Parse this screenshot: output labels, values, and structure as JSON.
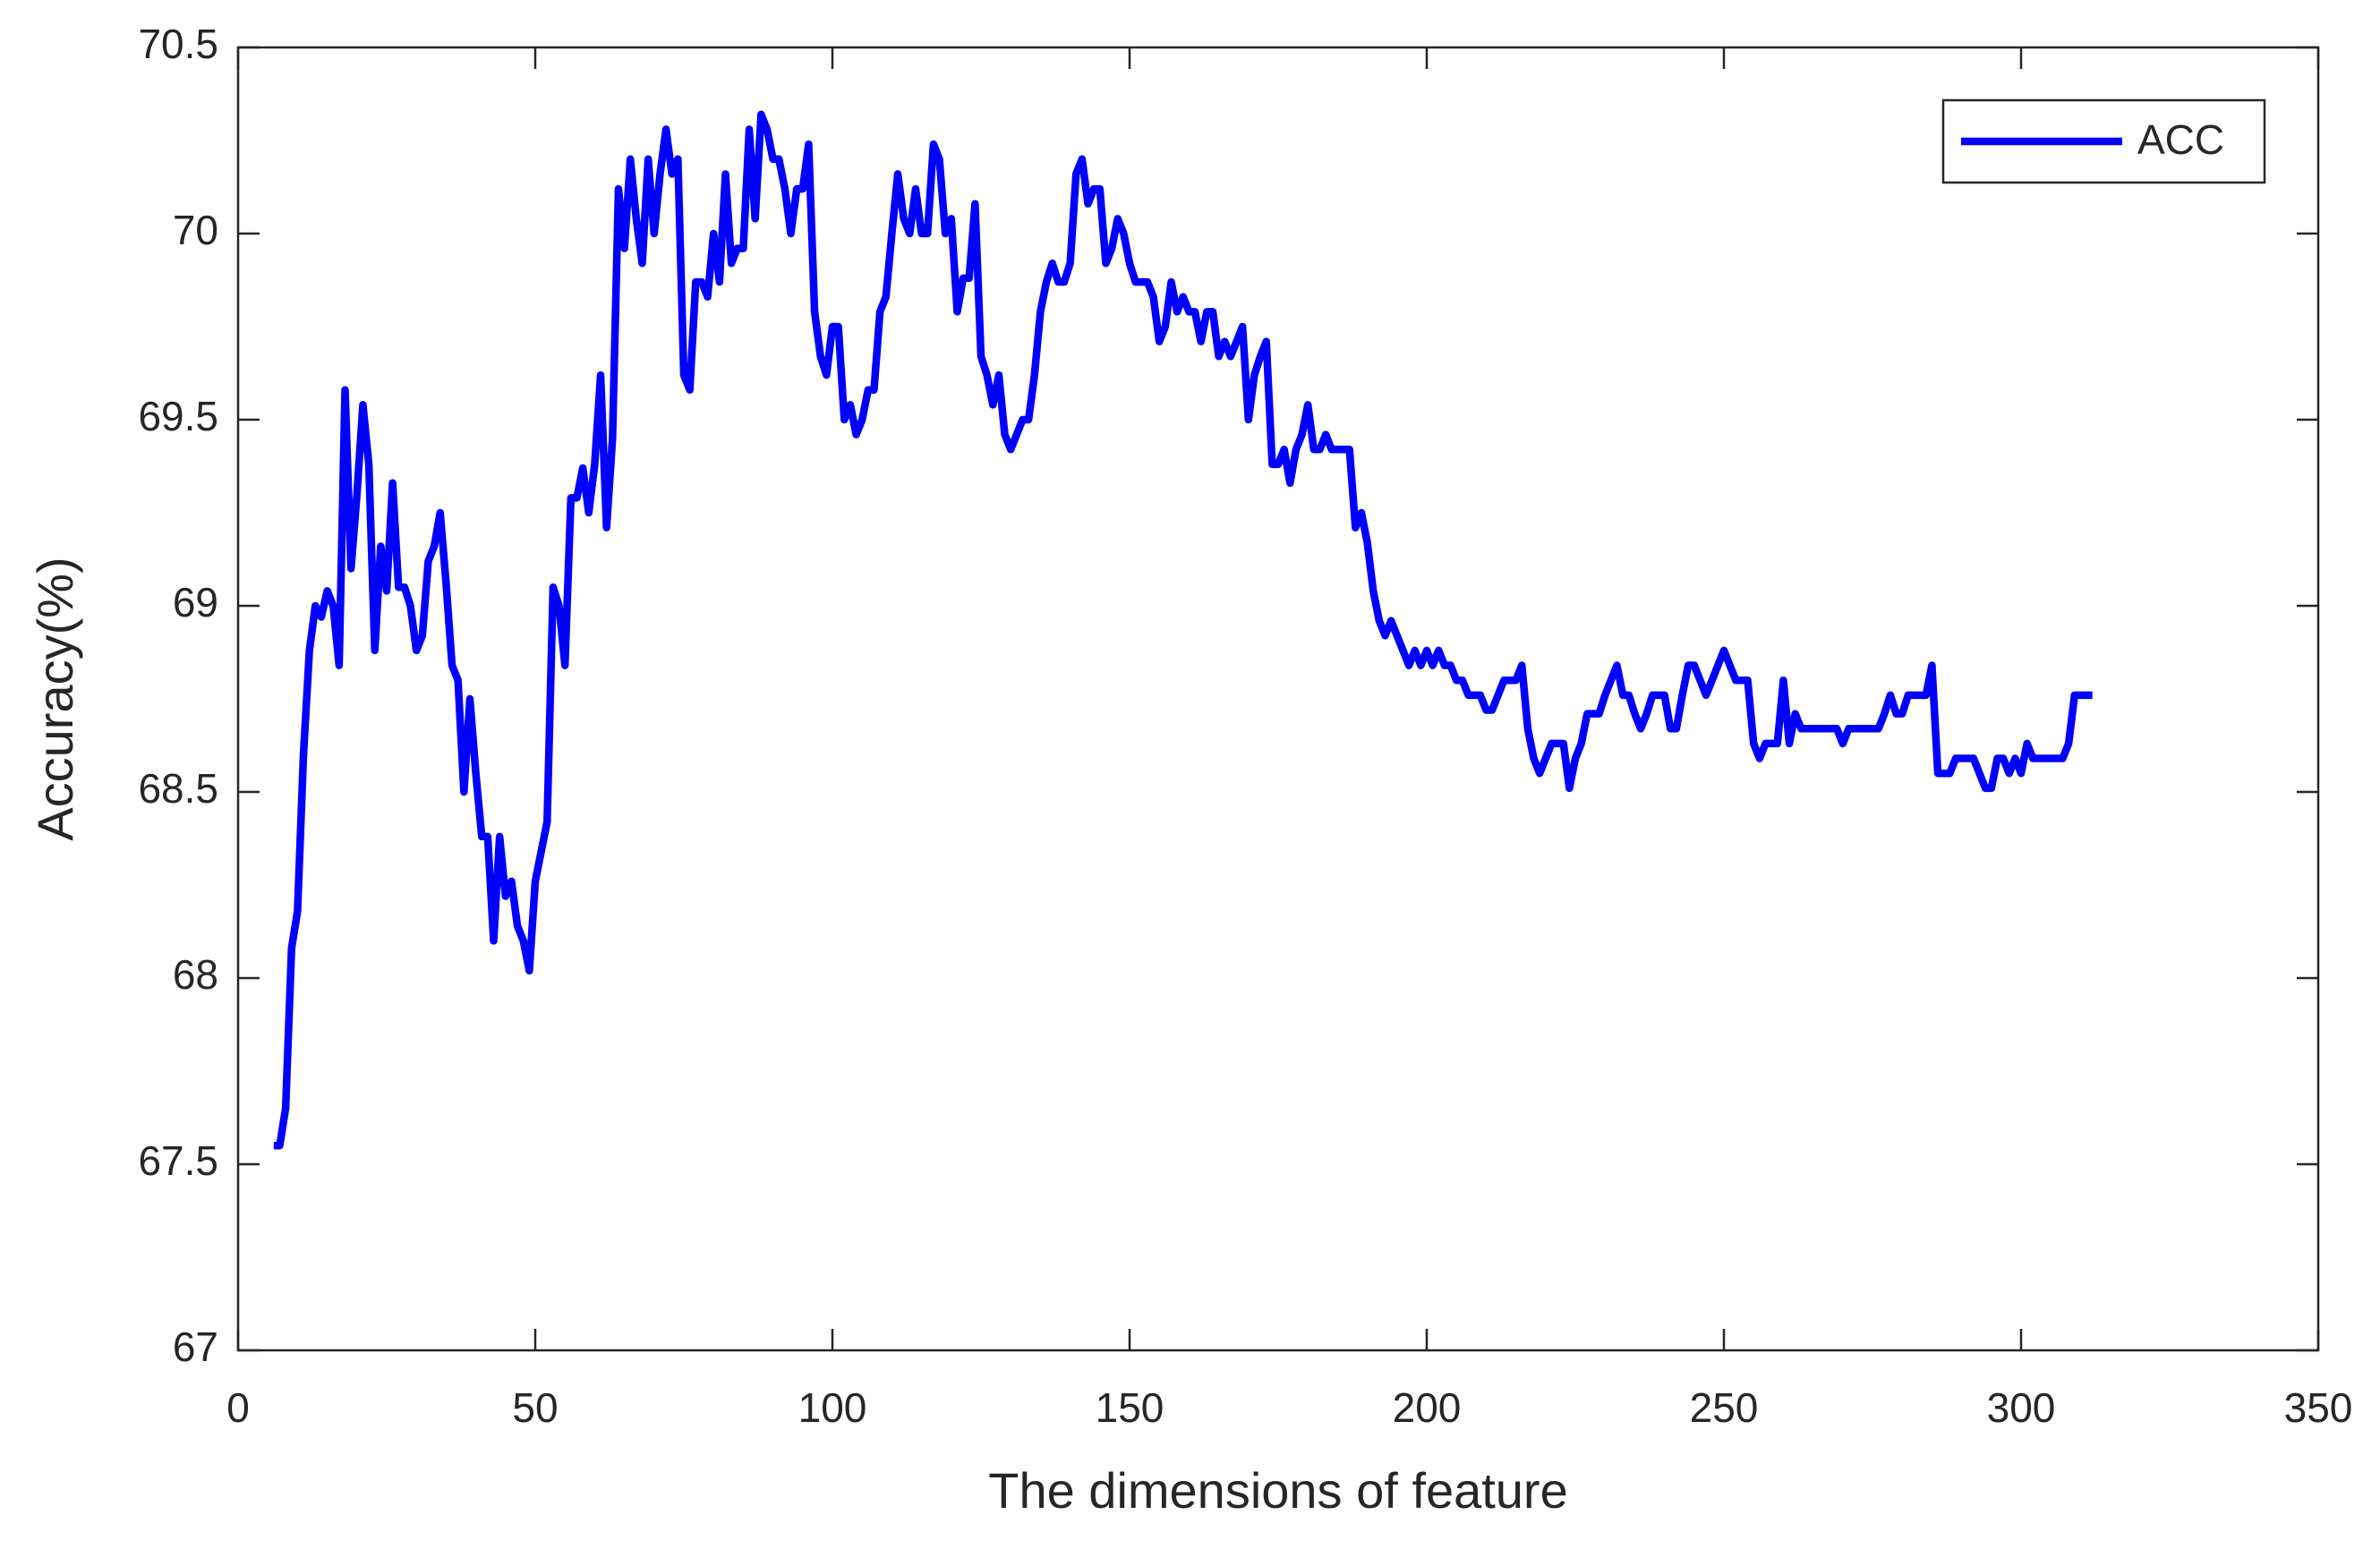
{
  "chart_data": {
    "type": "line",
    "xlabel": "The dimensions of feature",
    "ylabel": "Accuracy(%)",
    "xlim": [
      0,
      350
    ],
    "xticks": [
      0,
      50,
      100,
      150,
      200,
      250,
      300,
      350
    ],
    "ylim": [
      67,
      70.5
    ],
    "yticks": [
      67,
      67.5,
      68,
      68.5,
      69,
      69.5,
      70,
      70.5
    ],
    "legend_position": "upper right",
    "x": [
      6,
      7,
      8,
      9,
      10,
      11,
      12,
      13,
      14,
      15,
      16,
      17,
      18,
      19,
      20,
      21,
      22,
      23,
      24,
      25,
      26,
      27,
      28,
      29,
      30,
      31,
      32,
      33,
      34,
      35,
      36,
      37,
      38,
      39,
      40,
      41,
      42,
      43,
      44,
      45,
      46,
      47,
      48,
      49,
      50,
      51,
      52,
      53,
      54,
      55,
      56,
      57,
      58,
      59,
      60,
      61,
      62,
      63,
      64,
      65,
      66,
      67,
      68,
      69,
      70,
      71,
      72,
      73,
      74,
      75,
      76,
      77,
      78,
      79,
      80,
      81,
      82,
      83,
      84,
      85,
      86,
      87,
      88,
      89,
      90,
      91,
      92,
      93,
      94,
      95,
      96,
      97,
      98,
      99,
      100,
      101,
      102,
      103,
      104,
      105,
      106,
      107,
      108,
      109,
      110,
      111,
      112,
      113,
      114,
      115,
      116,
      117,
      118,
      119,
      120,
      121,
      122,
      123,
      124,
      125,
      126,
      127,
      128,
      129,
      130,
      131,
      132,
      133,
      134,
      135,
      136,
      137,
      138,
      139,
      140,
      141,
      142,
      143,
      144,
      145,
      146,
      147,
      148,
      149,
      150,
      151,
      152,
      153,
      154,
      155,
      156,
      157,
      158,
      159,
      160,
      161,
      162,
      163,
      164,
      165,
      166,
      167,
      168,
      169,
      170,
      171,
      172,
      173,
      174,
      175,
      176,
      177,
      178,
      179,
      180,
      181,
      182,
      183,
      184,
      185,
      186,
      187,
      188,
      189,
      190,
      191,
      192,
      193,
      194,
      195,
      196,
      197,
      198,
      199,
      200,
      201,
      202,
      203,
      204,
      205,
      206,
      207,
      208,
      209,
      210,
      211,
      212,
      213,
      214,
      215,
      216,
      217,
      218,
      219,
      220,
      221,
      222,
      223,
      224,
      225,
      226,
      227,
      228,
      229,
      230,
      231,
      232,
      233,
      234,
      235,
      236,
      237,
      238,
      239,
      240,
      241,
      242,
      243,
      244,
      245,
      246,
      247,
      248,
      249,
      250,
      251,
      252,
      253,
      254,
      255,
      256,
      257,
      258,
      259,
      260,
      261,
      262,
      263,
      264,
      265,
      266,
      267,
      268,
      269,
      270,
      271,
      272,
      273,
      274,
      275,
      276,
      277,
      278,
      279,
      280,
      281,
      282,
      283,
      284,
      285,
      286,
      287,
      288,
      289,
      290,
      291,
      292,
      293,
      294,
      295,
      296,
      297,
      298,
      299,
      300,
      301,
      302,
      303,
      304,
      305,
      306,
      307,
      308,
      309,
      310,
      311,
      312
    ],
    "series": [
      {
        "name": "ACC",
        "color": "#0000ff",
        "values": [
          67.55,
          67.55,
          67.65,
          68.08,
          68.18,
          68.6,
          68.88,
          69.0,
          68.97,
          69.04,
          69.0,
          68.84,
          69.58,
          69.1,
          69.3,
          69.54,
          69.38,
          68.88,
          69.16,
          69.04,
          69.33,
          69.05,
          69.05,
          69.0,
          68.88,
          68.92,
          69.12,
          69.16,
          69.25,
          69.06,
          68.84,
          68.8,
          68.5,
          68.75,
          68.55,
          68.38,
          68.38,
          68.1,
          68.38,
          68.22,
          68.26,
          68.14,
          68.1,
          68.02,
          68.26,
          68.34,
          68.42,
          69.05,
          69.0,
          68.84,
          69.29,
          69.29,
          69.37,
          69.25,
          69.38,
          69.62,
          69.21,
          69.45,
          70.12,
          69.96,
          70.2,
          70.04,
          69.92,
          70.2,
          70.0,
          70.16,
          70.28,
          70.16,
          70.2,
          69.62,
          69.58,
          69.87,
          69.87,
          69.83,
          70.0,
          69.87,
          70.16,
          69.92,
          69.96,
          69.96,
          70.28,
          70.04,
          70.32,
          70.28,
          70.2,
          70.2,
          70.12,
          70.0,
          70.12,
          70.12,
          70.24,
          69.79,
          69.67,
          69.62,
          69.75,
          69.75,
          69.5,
          69.54,
          69.46,
          69.5,
          69.58,
          69.58,
          69.79,
          69.83,
          70.0,
          70.16,
          70.04,
          70.0,
          70.12,
          70.0,
          70.0,
          70.24,
          70.2,
          70.0,
          70.04,
          69.79,
          69.88,
          69.88,
          70.08,
          69.67,
          69.62,
          69.54,
          69.62,
          69.46,
          69.42,
          69.46,
          69.5,
          69.5,
          69.62,
          69.79,
          69.87,
          69.92,
          69.87,
          69.87,
          69.92,
          70.16,
          70.2,
          70.08,
          70.12,
          70.12,
          69.92,
          69.96,
          70.04,
          70.0,
          69.92,
          69.87,
          69.87,
          69.87,
          69.83,
          69.71,
          69.75,
          69.87,
          69.79,
          69.83,
          69.79,
          69.79,
          69.71,
          69.79,
          69.79,
          69.67,
          69.71,
          69.67,
          69.71,
          69.75,
          69.5,
          69.62,
          69.67,
          69.71,
          69.38,
          69.38,
          69.42,
          69.33,
          69.42,
          69.46,
          69.54,
          69.42,
          69.42,
          69.46,
          69.42,
          69.42,
          69.42,
          69.42,
          69.21,
          69.25,
          69.17,
          69.04,
          68.96,
          68.92,
          68.96,
          68.92,
          68.88,
          68.84,
          68.88,
          68.84,
          68.88,
          68.84,
          68.88,
          68.84,
          68.84,
          68.8,
          68.8,
          68.76,
          68.76,
          68.76,
          68.72,
          68.72,
          68.76,
          68.8,
          68.8,
          68.8,
          68.84,
          68.67,
          68.59,
          68.55,
          68.59,
          68.63,
          68.63,
          68.63,
          68.51,
          68.59,
          68.63,
          68.71,
          68.71,
          68.71,
          68.76,
          68.8,
          68.84,
          68.76,
          68.76,
          68.71,
          68.67,
          68.71,
          68.76,
          68.76,
          68.76,
          68.67,
          68.67,
          68.76,
          68.84,
          68.84,
          68.8,
          68.76,
          68.8,
          68.84,
          68.88,
          68.84,
          68.8,
          68.8,
          68.8,
          68.63,
          68.59,
          68.63,
          68.63,
          68.63,
          68.8,
          68.63,
          68.71,
          68.67,
          68.67,
          68.67,
          68.67,
          68.67,
          68.67,
          68.67,
          68.63,
          68.67,
          68.67,
          68.67,
          68.67,
          68.67,
          68.67,
          68.71,
          68.76,
          68.71,
          68.71,
          68.76,
          68.76,
          68.76,
          68.76,
          68.84,
          68.55,
          68.55,
          68.55,
          68.59,
          68.59,
          68.59,
          68.59,
          68.55,
          68.51,
          68.51,
          68.59,
          68.59,
          68.55,
          68.59,
          68.55,
          68.63,
          68.59,
          68.59,
          68.59,
          68.59,
          68.59,
          68.59,
          68.63,
          68.76,
          68.76,
          68.76,
          68.76
        ]
      }
    ]
  }
}
